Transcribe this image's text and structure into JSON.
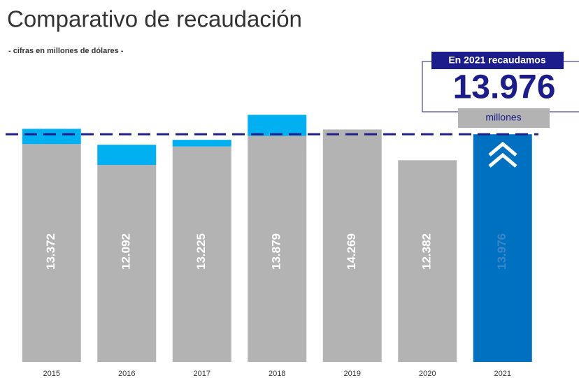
{
  "chart_data": {
    "type": "bar",
    "title": "Comparativo de recaudación",
    "subtitle": "- cifras en millones de dólares -",
    "categories": [
      "2015",
      "2016",
      "2017",
      "2018",
      "2019",
      "2020",
      "2021"
    ],
    "series": [
      {
        "color": "#b3b3b3",
        "colors": [
          "#b3b3b3",
          "#b3b3b3",
          "#b3b3b3",
          "#b3b3b3",
          "#b3b3b3",
          "#b3b3b3",
          "#0070c0"
        ],
        "values": [
          13.372,
          12.092,
          13.225,
          13.879,
          14.269,
          12.382,
          13.976
        ]
      },
      {
        "color": "#00b0f0",
        "values": [
          0.94,
          1.24,
          0.41,
          1.29,
          null,
          null,
          null
        ]
      }
    ],
    "stacked": true,
    "ylim": [
      0,
      16
    ],
    "reference_line": 13.976,
    "reference_color": "#1f1f8a",
    "callout": {
      "title": "En 2021 recaudamos",
      "unit": "millones"
    }
  }
}
